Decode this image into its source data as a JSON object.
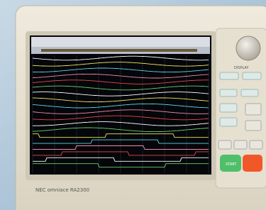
{
  "device": {
    "brand": "NEC omniace RA2300",
    "panel_section": "DISPLAY",
    "start_button": "START"
  }
}
